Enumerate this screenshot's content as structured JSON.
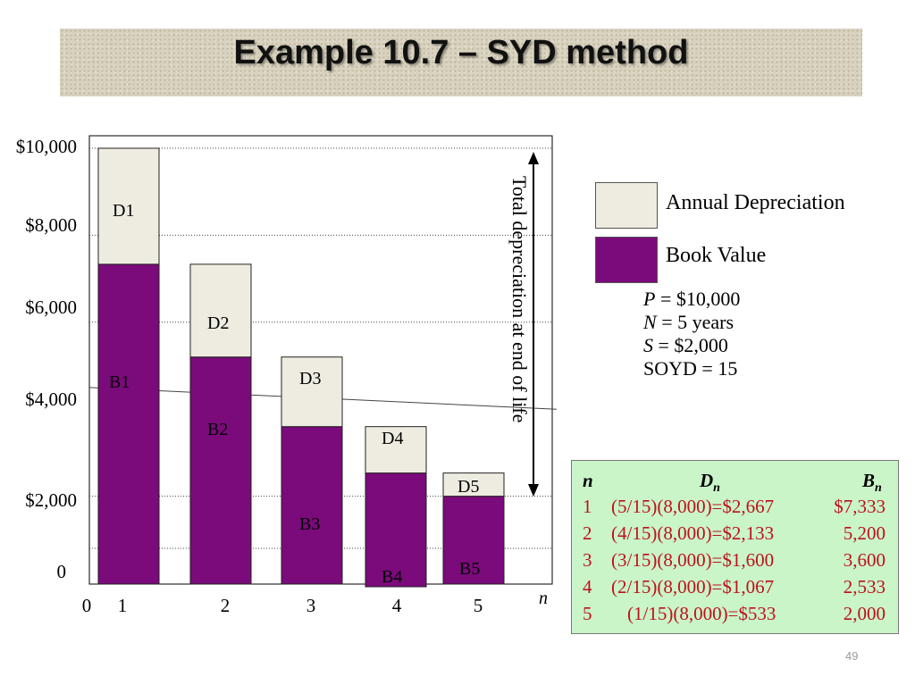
{
  "slide": {
    "title": "Example 10.7 – SYD method",
    "page_number": "49"
  },
  "chart_data": {
    "type": "bar",
    "stacked": true,
    "categories": [
      "1",
      "2",
      "3",
      "4",
      "5"
    ],
    "x_zero_label": "0",
    "xlabel": "n",
    "y_tick_labels": [
      "0",
      "$2,000",
      "$4,000",
      "$6,000",
      "$8,000",
      "$10,000"
    ],
    "series": [
      {
        "name": "Book Value",
        "values": [
          7333,
          5200,
          3600,
          2533,
          2000
        ],
        "color": "#7b0a7b",
        "labels": [
          "B1",
          "B2",
          "B3",
          "B4",
          "B5"
        ]
      },
      {
        "name": "Annual Depreciation",
        "values": [
          2667,
          2133,
          1600,
          1067,
          533
        ],
        "color": "#eeebe0",
        "labels": [
          "D1",
          "D2",
          "D3",
          "D4",
          "D5"
        ]
      }
    ],
    "arrow_annotation": "Total depreciation at end of life"
  },
  "legend": {
    "items": [
      {
        "label": "Annual Depreciation",
        "color": "#eeebe0"
      },
      {
        "label": "Book Value",
        "color": "#7b0a7b"
      }
    ]
  },
  "params": {
    "P": "$10,000",
    "N": "5 years",
    "S": "$2,000",
    "SOYD": "15"
  },
  "table": {
    "headers": {
      "n": "n",
      "D": "D",
      "D_sub": "n",
      "B": "B",
      "B_sub": "n"
    },
    "rows": [
      {
        "n": "1",
        "d": "(5/15)(8,000)=$2,667",
        "b": "$7,333"
      },
      {
        "n": "2",
        "d": "(4/15)(8,000)=$2,133",
        "b": "5,200"
      },
      {
        "n": "3",
        "d": "(3/15)(8,000)=$1,600",
        "b": "3,600"
      },
      {
        "n": "4",
        "d": "(2/15)(8,000)=$1,067",
        "b": "2,533"
      },
      {
        "n": "5",
        "d": "(1/15)(8,000)=$533",
        "b": "2,000"
      }
    ]
  }
}
